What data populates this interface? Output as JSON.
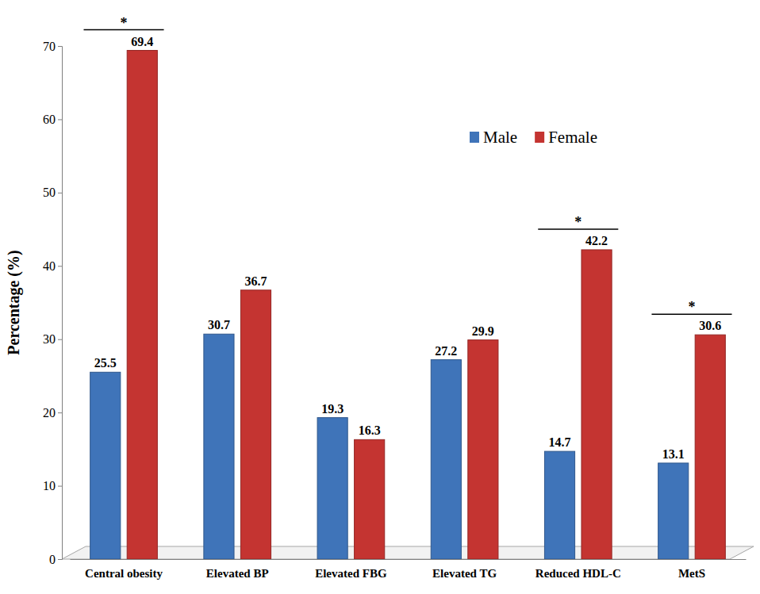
{
  "chart_data": {
    "type": "bar",
    "y_label": "Percentage (%)",
    "categories": [
      "Central obesity",
      "Elevated BP",
      "Elevated FBG",
      "Elevated TG",
      "Reduced HDL-C",
      "MetS"
    ],
    "series": [
      {
        "name": "Male",
        "color": "#3f74b9",
        "values": [
          25.5,
          30.7,
          19.3,
          27.2,
          14.7,
          13.1
        ]
      },
      {
        "name": "Female",
        "color": "#c43431",
        "values": [
          69.4,
          36.7,
          16.3,
          29.9,
          42.2,
          30.6
        ]
      }
    ],
    "ylim": [
      0,
      70
    ],
    "yticks": [
      0,
      10,
      20,
      30,
      40,
      50,
      60,
      70
    ],
    "grid": false,
    "legend": "top-right",
    "data_labels": true,
    "annotations": [
      {
        "category": "Central obesity",
        "text": "*"
      },
      {
        "category": "Reduced HDL-C",
        "text": "*"
      },
      {
        "category": "MetS",
        "text": "*"
      }
    ]
  }
}
